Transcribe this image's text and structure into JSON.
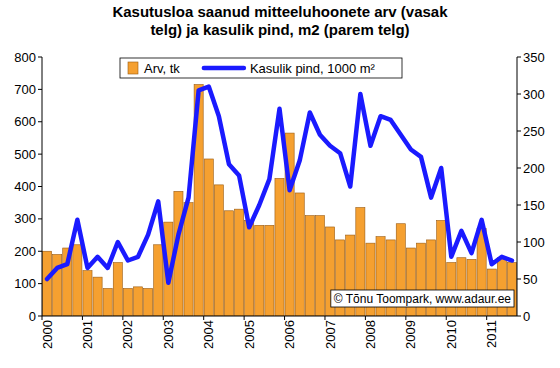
{
  "chart_data": {
    "type": "bar",
    "title": "Kasutusloa saanud mitteeluhoonete arv (vasak telg) ja kasulik pind, m2 (parem telg)",
    "categories": [
      "2000",
      null,
      null,
      null,
      "2001",
      null,
      null,
      null,
      "2002",
      null,
      null,
      null,
      "2003",
      null,
      null,
      null,
      "2004",
      null,
      null,
      null,
      "2005",
      null,
      null,
      null,
      "2006",
      null,
      null,
      null,
      "2007",
      null,
      null,
      null,
      "2008",
      null,
      null,
      null,
      "2009",
      null,
      null,
      null,
      "2010",
      null,
      null,
      null,
      "2011",
      null,
      null
    ],
    "series": [
      {
        "name": "Arv, tk",
        "type": "bar",
        "color": "#f5a030",
        "values": [
          200,
          190,
          210,
          220,
          140,
          120,
          85,
          165,
          85,
          90,
          85,
          220,
          290,
          385,
          350,
          715,
          485,
          405,
          325,
          330,
          295,
          280,
          280,
          425,
          565,
          380,
          310,
          310,
          275,
          235,
          250,
          335,
          225,
          245,
          235,
          285,
          210,
          225,
          235,
          295,
          165,
          180,
          175,
          270,
          145,
          180,
          165
        ]
      },
      {
        "name": "Kasulik pind, 1000 m²",
        "type": "line",
        "color": "#1a1aff",
        "axis": "y2",
        "values": [
          50,
          65,
          70,
          130,
          65,
          80,
          65,
          100,
          75,
          80,
          110,
          155,
          45,
          110,
          160,
          305,
          310,
          270,
          205,
          190,
          120,
          150,
          185,
          280,
          170,
          210,
          275,
          245,
          230,
          220,
          175,
          300,
          230,
          270,
          265,
          245,
          225,
          215,
          160,
          200,
          80,
          115,
          85,
          130,
          70,
          80,
          75
        ]
      }
    ],
    "ylim": [
      0,
      800
    ],
    "yticks": [
      0,
      100,
      200,
      300,
      400,
      500,
      600,
      700,
      800
    ],
    "y2lim": [
      0,
      350
    ],
    "y2ticks": [
      0,
      50,
      100,
      150,
      200,
      250,
      300,
      350
    ],
    "legend": "top",
    "annotations": [
      "© Tõnu Toompark, www.adaur.ee"
    ]
  }
}
